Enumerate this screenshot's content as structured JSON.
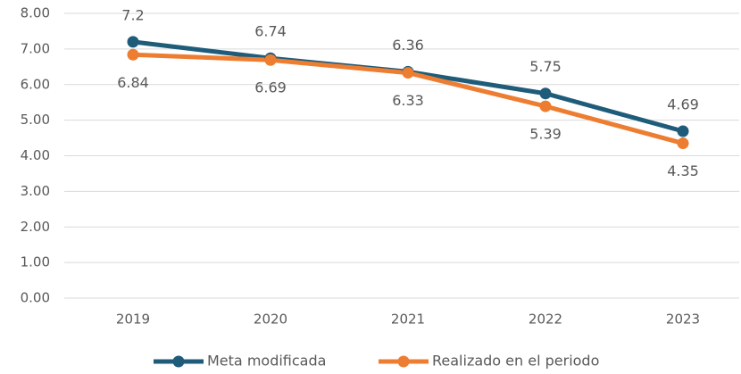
{
  "chart_data": {
    "type": "line",
    "categories": [
      "2019",
      "2020",
      "2021",
      "2022",
      "2023"
    ],
    "series": [
      {
        "name": "Meta modificada",
        "color": "#1f5c7a",
        "values": [
          7.2,
          6.74,
          6.36,
          5.75,
          4.69
        ]
      },
      {
        "name": "Realizado en el periodo",
        "color": "#ed7d31",
        "values": [
          6.84,
          6.69,
          6.33,
          5.39,
          4.35
        ]
      }
    ],
    "ylim": [
      0,
      8
    ],
    "yticks": [
      {
        "value": 0,
        "label": "0.00"
      },
      {
        "value": 1,
        "label": "1.00"
      },
      {
        "value": 2,
        "label": "2.00"
      },
      {
        "value": 3,
        "label": "3.00"
      },
      {
        "value": 4,
        "label": "4.00"
      },
      {
        "value": 5,
        "label": "5.00"
      },
      {
        "value": 6,
        "label": "6.00"
      },
      {
        "value": 7,
        "label": "7.00"
      },
      {
        "value": 8,
        "label": "8.00"
      }
    ],
    "grid": true,
    "legend": "bottom"
  }
}
